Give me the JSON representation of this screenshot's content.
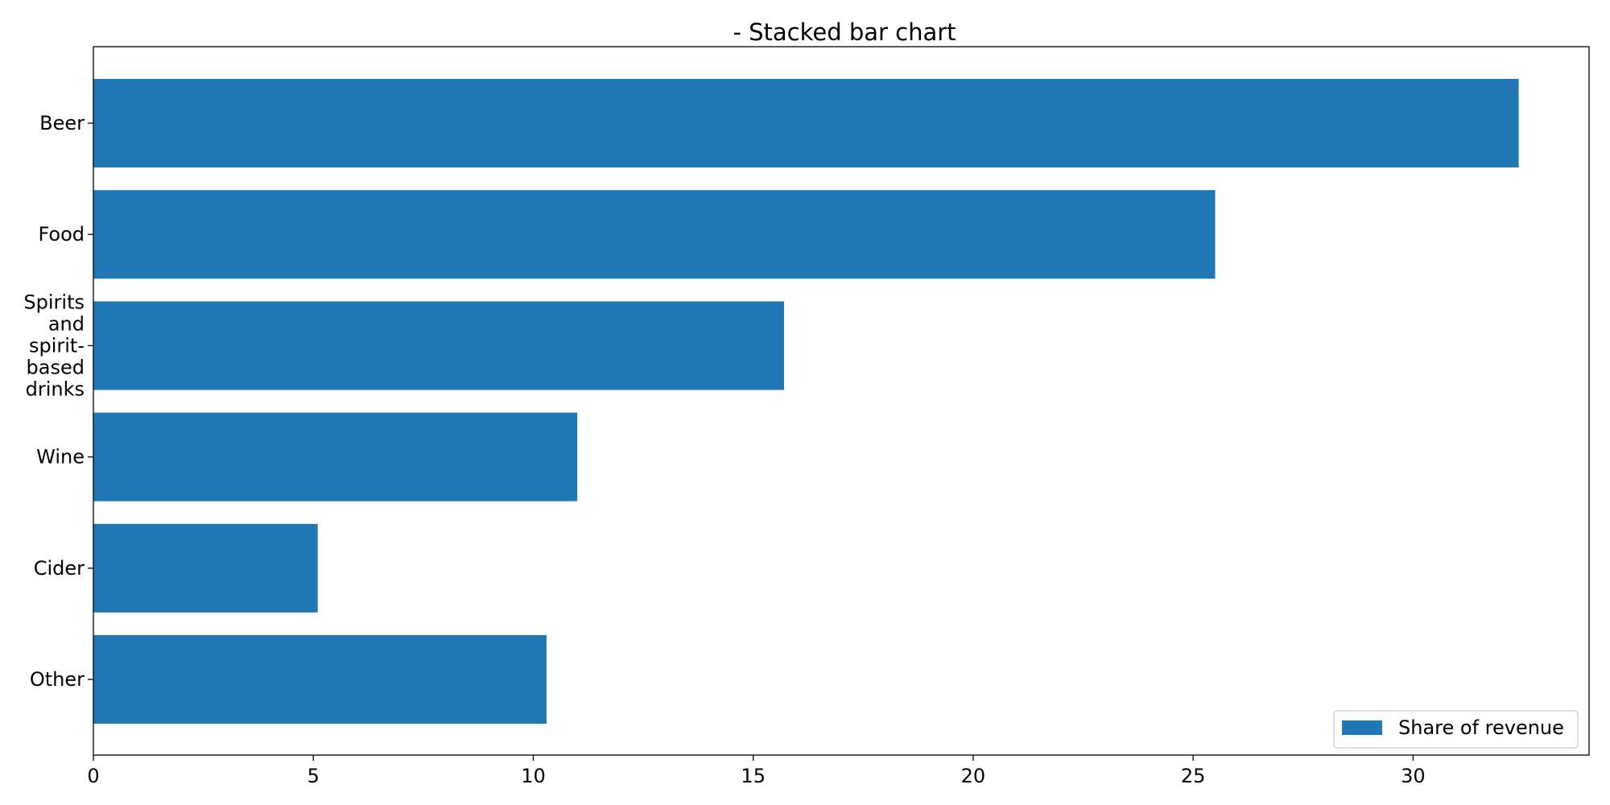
{
  "chart_data": {
    "type": "bar",
    "orientation": "horizontal",
    "title": "- Stacked bar chart",
    "xlabel": "",
    "ylabel": "",
    "categories": [
      "Beer",
      "Food",
      "Spirits and spirit-based drinks",
      "Wine",
      "Cider",
      "Other"
    ],
    "category_lines": [
      [
        "Beer"
      ],
      [
        "Food"
      ],
      [
        "Spirits",
        "and",
        "spirit-",
        "based",
        "drinks"
      ],
      [
        "Wine"
      ],
      [
        "Cider"
      ],
      [
        "Other"
      ]
    ],
    "series": [
      {
        "name": "Share of revenue",
        "color": "#1f77b4",
        "values": [
          32.4,
          25.5,
          15.7,
          11.0,
          5.1,
          10.3
        ]
      }
    ],
    "xlim": [
      0,
      34
    ],
    "xticks": [
      0,
      5,
      10,
      15,
      20,
      25,
      30
    ],
    "grid": false,
    "legend_position": "lower-right"
  }
}
